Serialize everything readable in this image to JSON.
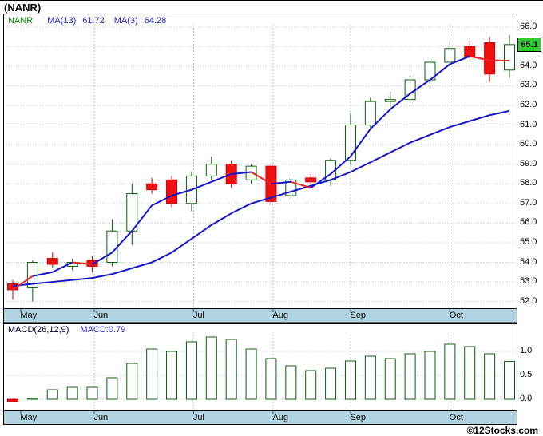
{
  "page": {
    "title": "(NANR)",
    "copyright": "©12Stocks.com"
  },
  "legend": {
    "symbol": "NANR",
    "ma13_label": "MA(13)",
    "ma13_value": "61.72",
    "ma3_label": "MA(3)",
    "ma3_value": "64.28"
  },
  "macd_legend": {
    "label": "MACD(26,12,9)",
    "value": "MACD:0.79"
  },
  "price_badge": "65.1",
  "colors": {
    "up": "#ffffff",
    "up_border": "#0b5e0b",
    "down": "#ee1111",
    "down_border": "#cc0000",
    "ma": "#1515cc",
    "ma_decline": "#ee2222",
    "band": "#b2d4e2",
    "badge_bg": "#33cc33",
    "grid": "#c4c4c4",
    "vgrid": "#aac4d0",
    "frame": "#000000",
    "legend_green": "#008800",
    "legend_blue": "#2222cc"
  },
  "chart_data": [
    {
      "type": "candlestick",
      "symbol": "NANR",
      "interval": "weekly",
      "ylim": [
        52.0,
        66.0
      ],
      "y_ticks": [
        "66.0",
        "65.0",
        "64.0",
        "63.0",
        "62.0",
        "61.0",
        "60.0",
        "59.0",
        "58.0",
        "57.0",
        "56.0",
        "55.0",
        "54.0",
        "53.0",
        "52.0"
      ],
      "x_months": [
        {
          "label": "May",
          "pos": 0.9
        },
        {
          "label": "Jun",
          "pos": 4.6
        },
        {
          "label": "Jul",
          "pos": 9.6
        },
        {
          "label": "Aug",
          "pos": 13.6
        },
        {
          "label": "Sep",
          "pos": 17.5
        },
        {
          "label": "Oct",
          "pos": 22.5
        }
      ],
      "last_close": 65.1,
      "ohlc": [
        [
          52.9,
          53.1,
          52.1,
          52.6
        ],
        [
          52.7,
          54.1,
          52.0,
          54.0
        ],
        [
          54.2,
          54.5,
          53.7,
          53.9
        ],
        [
          53.8,
          54.2,
          53.6,
          54.0
        ],
        [
          54.1,
          54.3,
          53.5,
          53.8
        ],
        [
          54.0,
          56.2,
          53.8,
          55.6
        ],
        [
          55.6,
          58.0,
          54.9,
          57.5
        ],
        [
          58.0,
          58.3,
          57.5,
          57.7
        ],
        [
          58.2,
          58.4,
          56.8,
          57.0
        ],
        [
          57.0,
          58.6,
          56.6,
          58.4
        ],
        [
          58.4,
          59.4,
          58.2,
          59.0
        ],
        [
          59.0,
          59.2,
          57.8,
          58.0
        ],
        [
          58.2,
          59.0,
          58.0,
          58.9
        ],
        [
          58.9,
          59.0,
          56.9,
          57.1
        ],
        [
          57.4,
          58.3,
          57.2,
          58.2
        ],
        [
          58.3,
          58.5,
          57.9,
          58.1
        ],
        [
          58.2,
          59.3,
          57.9,
          59.2
        ],
        [
          59.2,
          61.6,
          59.0,
          61.0
        ],
        [
          61.0,
          62.4,
          60.8,
          62.2
        ],
        [
          62.2,
          62.7,
          61.9,
          62.3
        ],
        [
          62.3,
          63.5,
          62.1,
          63.3
        ],
        [
          63.3,
          64.4,
          63.1,
          64.2
        ],
        [
          64.2,
          65.2,
          64.0,
          64.9
        ],
        [
          65.0,
          65.3,
          64.4,
          64.5
        ],
        [
          65.2,
          65.5,
          63.2,
          63.6
        ],
        [
          63.8,
          65.6,
          63.4,
          65.1
        ]
      ],
      "series": [
        {
          "name": "MA(13)",
          "last": 61.72,
          "values": [
            52.8,
            52.9,
            53.0,
            53.1,
            53.2,
            53.4,
            53.7,
            54.0,
            54.5,
            55.2,
            55.9,
            56.5,
            57.0,
            57.3,
            57.6,
            57.9,
            58.2,
            58.6,
            59.1,
            59.6,
            60.1,
            60.5,
            60.9,
            61.2,
            61.5,
            61.72
          ]
        },
        {
          "name": "MA(3)",
          "last": 64.28,
          "values": [
            52.6,
            53.3,
            53.5,
            54.0,
            53.9,
            54.5,
            55.6,
            56.9,
            57.4,
            57.7,
            58.1,
            58.5,
            58.6,
            58.0,
            58.1,
            57.8,
            58.5,
            59.4,
            60.8,
            61.8,
            62.6,
            63.3,
            64.1,
            64.5,
            64.3,
            64.28
          ],
          "segment_colors": [
            "r",
            "b",
            "b",
            "r",
            "b",
            "b",
            "b",
            "b",
            "b",
            "b",
            "b",
            "b",
            "r",
            "b",
            "r",
            "b",
            "b",
            "b",
            "b",
            "b",
            "b",
            "b",
            "b",
            "r",
            "r"
          ]
        }
      ]
    },
    {
      "type": "bar",
      "name": "MACD(26,12,9)",
      "last_value": 0.79,
      "ylim": [
        -0.15,
        1.35
      ],
      "y_ticks": [
        "1.0",
        "0.5",
        "0.0"
      ],
      "values": [
        -0.05,
        0.02,
        0.2,
        0.25,
        0.25,
        0.45,
        0.75,
        1.05,
        1.0,
        1.2,
        1.3,
        1.25,
        1.05,
        0.85,
        0.7,
        0.6,
        0.65,
        0.8,
        0.9,
        0.85,
        0.95,
        1.0,
        1.15,
        1.1,
        0.95,
        0.79
      ]
    }
  ]
}
